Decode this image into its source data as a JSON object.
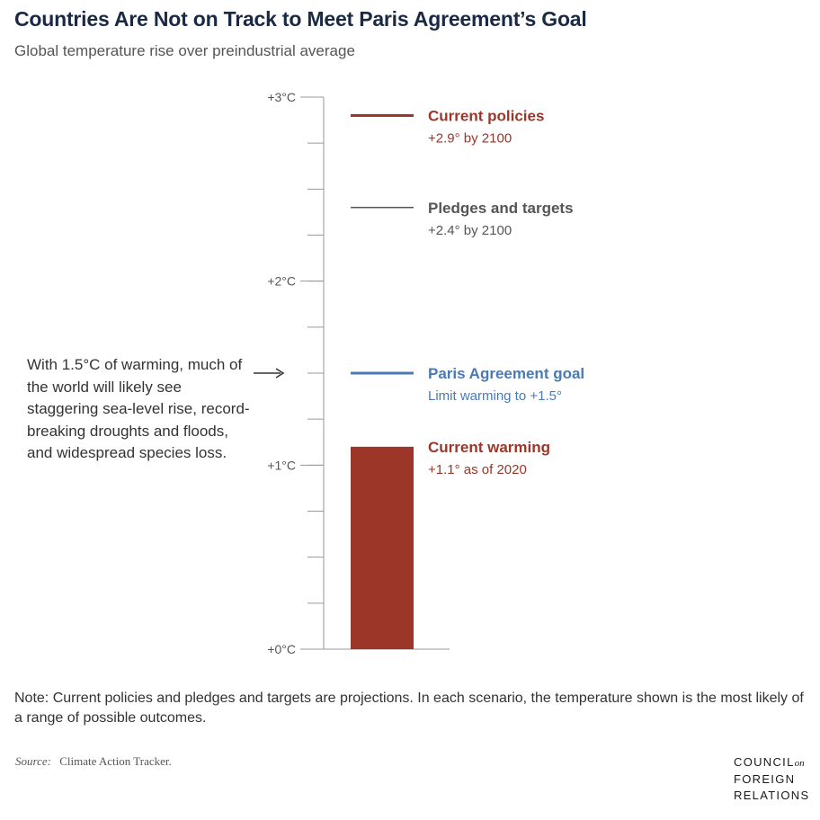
{
  "chart_data": {
    "type": "bar",
    "title": "Countries Are Not on Track to Meet Paris Agreement’s Goal",
    "subtitle": "Global temperature rise over preindustrial average",
    "ylim": [
      0,
      3
    ],
    "y_ticks": [
      {
        "value": 0,
        "label": "+0°C"
      },
      {
        "value": 1,
        "label": "+1°C"
      },
      {
        "value": 2,
        "label": "+2°C"
      },
      {
        "value": 3,
        "label": "+3°C"
      }
    ],
    "minor_tick_step": 0.25,
    "bar": {
      "label": "Current warming",
      "sublabel": "+1.1° as of 2020",
      "value": 1.1,
      "color": "#9b3628"
    },
    "reference_lines": [
      {
        "label": "Current policies",
        "sublabel": "+2.9° by 2100",
        "value": 2.9,
        "color": "#9b3628"
      },
      {
        "label": "Pledges and targets",
        "sublabel": "+2.4° by 2100",
        "value": 2.4,
        "color": "#555555"
      },
      {
        "label": "Paris Agreement goal",
        "sublabel": "Limit warming to +1.5°",
        "value": 1.5,
        "color": "#4a7ab5"
      }
    ],
    "annotation": {
      "text": "With 1.5°C of warming, much of the world will likely see staggering sea-level rise, record-breaking droughts and floods, and widespread species loss.",
      "points_to_value": 1.5
    }
  },
  "note": "Note: Current policies and pledges and targets are projections. In each scenario, the temperature shown is the most likely of a range of possible outcomes.",
  "source": {
    "label": "Source:",
    "text": "Climate Action Tracker."
  },
  "logo": {
    "line1": "COUNCIL",
    "on": "on",
    "line2": "FOREIGN",
    "line3": "RELATIONS"
  },
  "colors": {
    "current_red": "#9b3628",
    "paris_blue": "#4a7ab5",
    "pledge_gray": "#555555",
    "title_navy": "#1b2a44"
  }
}
